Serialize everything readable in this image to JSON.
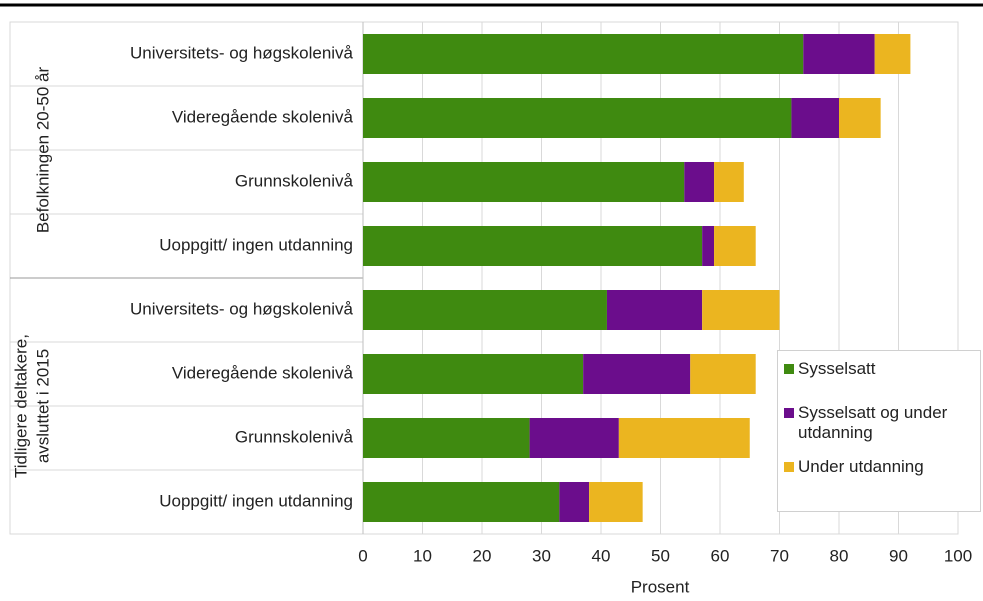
{
  "chart_data": {
    "type": "stacked-bar-horizontal",
    "x_label": "Prosent",
    "groups": [
      {
        "label": [
          "Befolkningen 20-50 år"
        ]
      },
      {
        "label": [
          "Tidligere deltakere,",
          "avsluttet i 2015"
        ]
      }
    ],
    "categories": [
      "Universitets- og høgskolenivå",
      "Videregående skolenivå",
      "Grunnskolenivå",
      "Uoppgitt/ ingen utdanning",
      "Universitets- og høgskolenivå",
      "Videregående skolenivå",
      "Grunnskolenivå",
      "Uoppgitt/ ingen utdanning"
    ],
    "series": [
      {
        "name": "Sysselsatt",
        "color": "#3f8a10",
        "values": [
          74,
          72,
          54,
          57,
          41,
          37,
          28,
          33
        ]
      },
      {
        "name": "Sysselsatt og under utdanning",
        "color": "#6b0d8c",
        "values": [
          12,
          8,
          5,
          2,
          16,
          18,
          15,
          5
        ]
      },
      {
        "name": "Under utdanning",
        "color": "#ebb520",
        "values": [
          6,
          7,
          5,
          7,
          13,
          11,
          22,
          9
        ]
      }
    ],
    "xlim": [
      0,
      100
    ],
    "xticks": [
      0,
      10,
      20,
      30,
      40,
      50,
      60,
      70,
      80,
      90,
      100
    ],
    "grid": true
  }
}
